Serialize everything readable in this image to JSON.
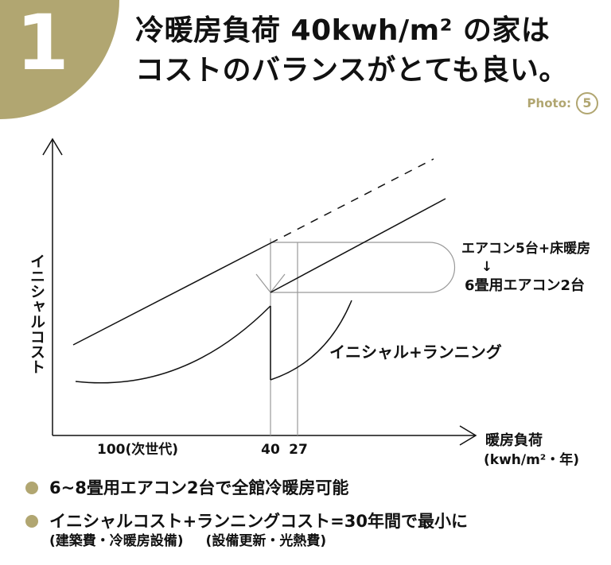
{
  "badge": {
    "number": "1"
  },
  "title": {
    "line1": "冷暖房負荷 40kwh/m² の家は",
    "line2": "コストのバランスがとても良い。"
  },
  "photo": {
    "label": "Photo:",
    "number": "5"
  },
  "diagram": {
    "y_axis_label": "イニシャルコスト",
    "x_axis_label_line1": "暖房負荷",
    "x_axis_label_line2": "(kwh/m²・年)",
    "tick_100": "100(次世代)",
    "tick_40": "40",
    "tick_27": "27",
    "curve_label": "イニシャル+ランニング",
    "annotation_top": "エアコン5台+床暖房",
    "annotation_arrow": "↓",
    "annotation_bottom": "6畳用エアコン2台"
  },
  "colors": {
    "accent": "#b1a671",
    "line": "#111111",
    "guide": "#999999"
  },
  "bullets": {
    "item1": "6~8畳用エアコン2台で全館冷暖房可能",
    "item2_main": "イニシャルコスト+ランニングコスト=30年間で最小に",
    "item2_sub1": "(建築費・冷暖房設備)",
    "item2_sub2": "(設備更新・光熱費)"
  }
}
